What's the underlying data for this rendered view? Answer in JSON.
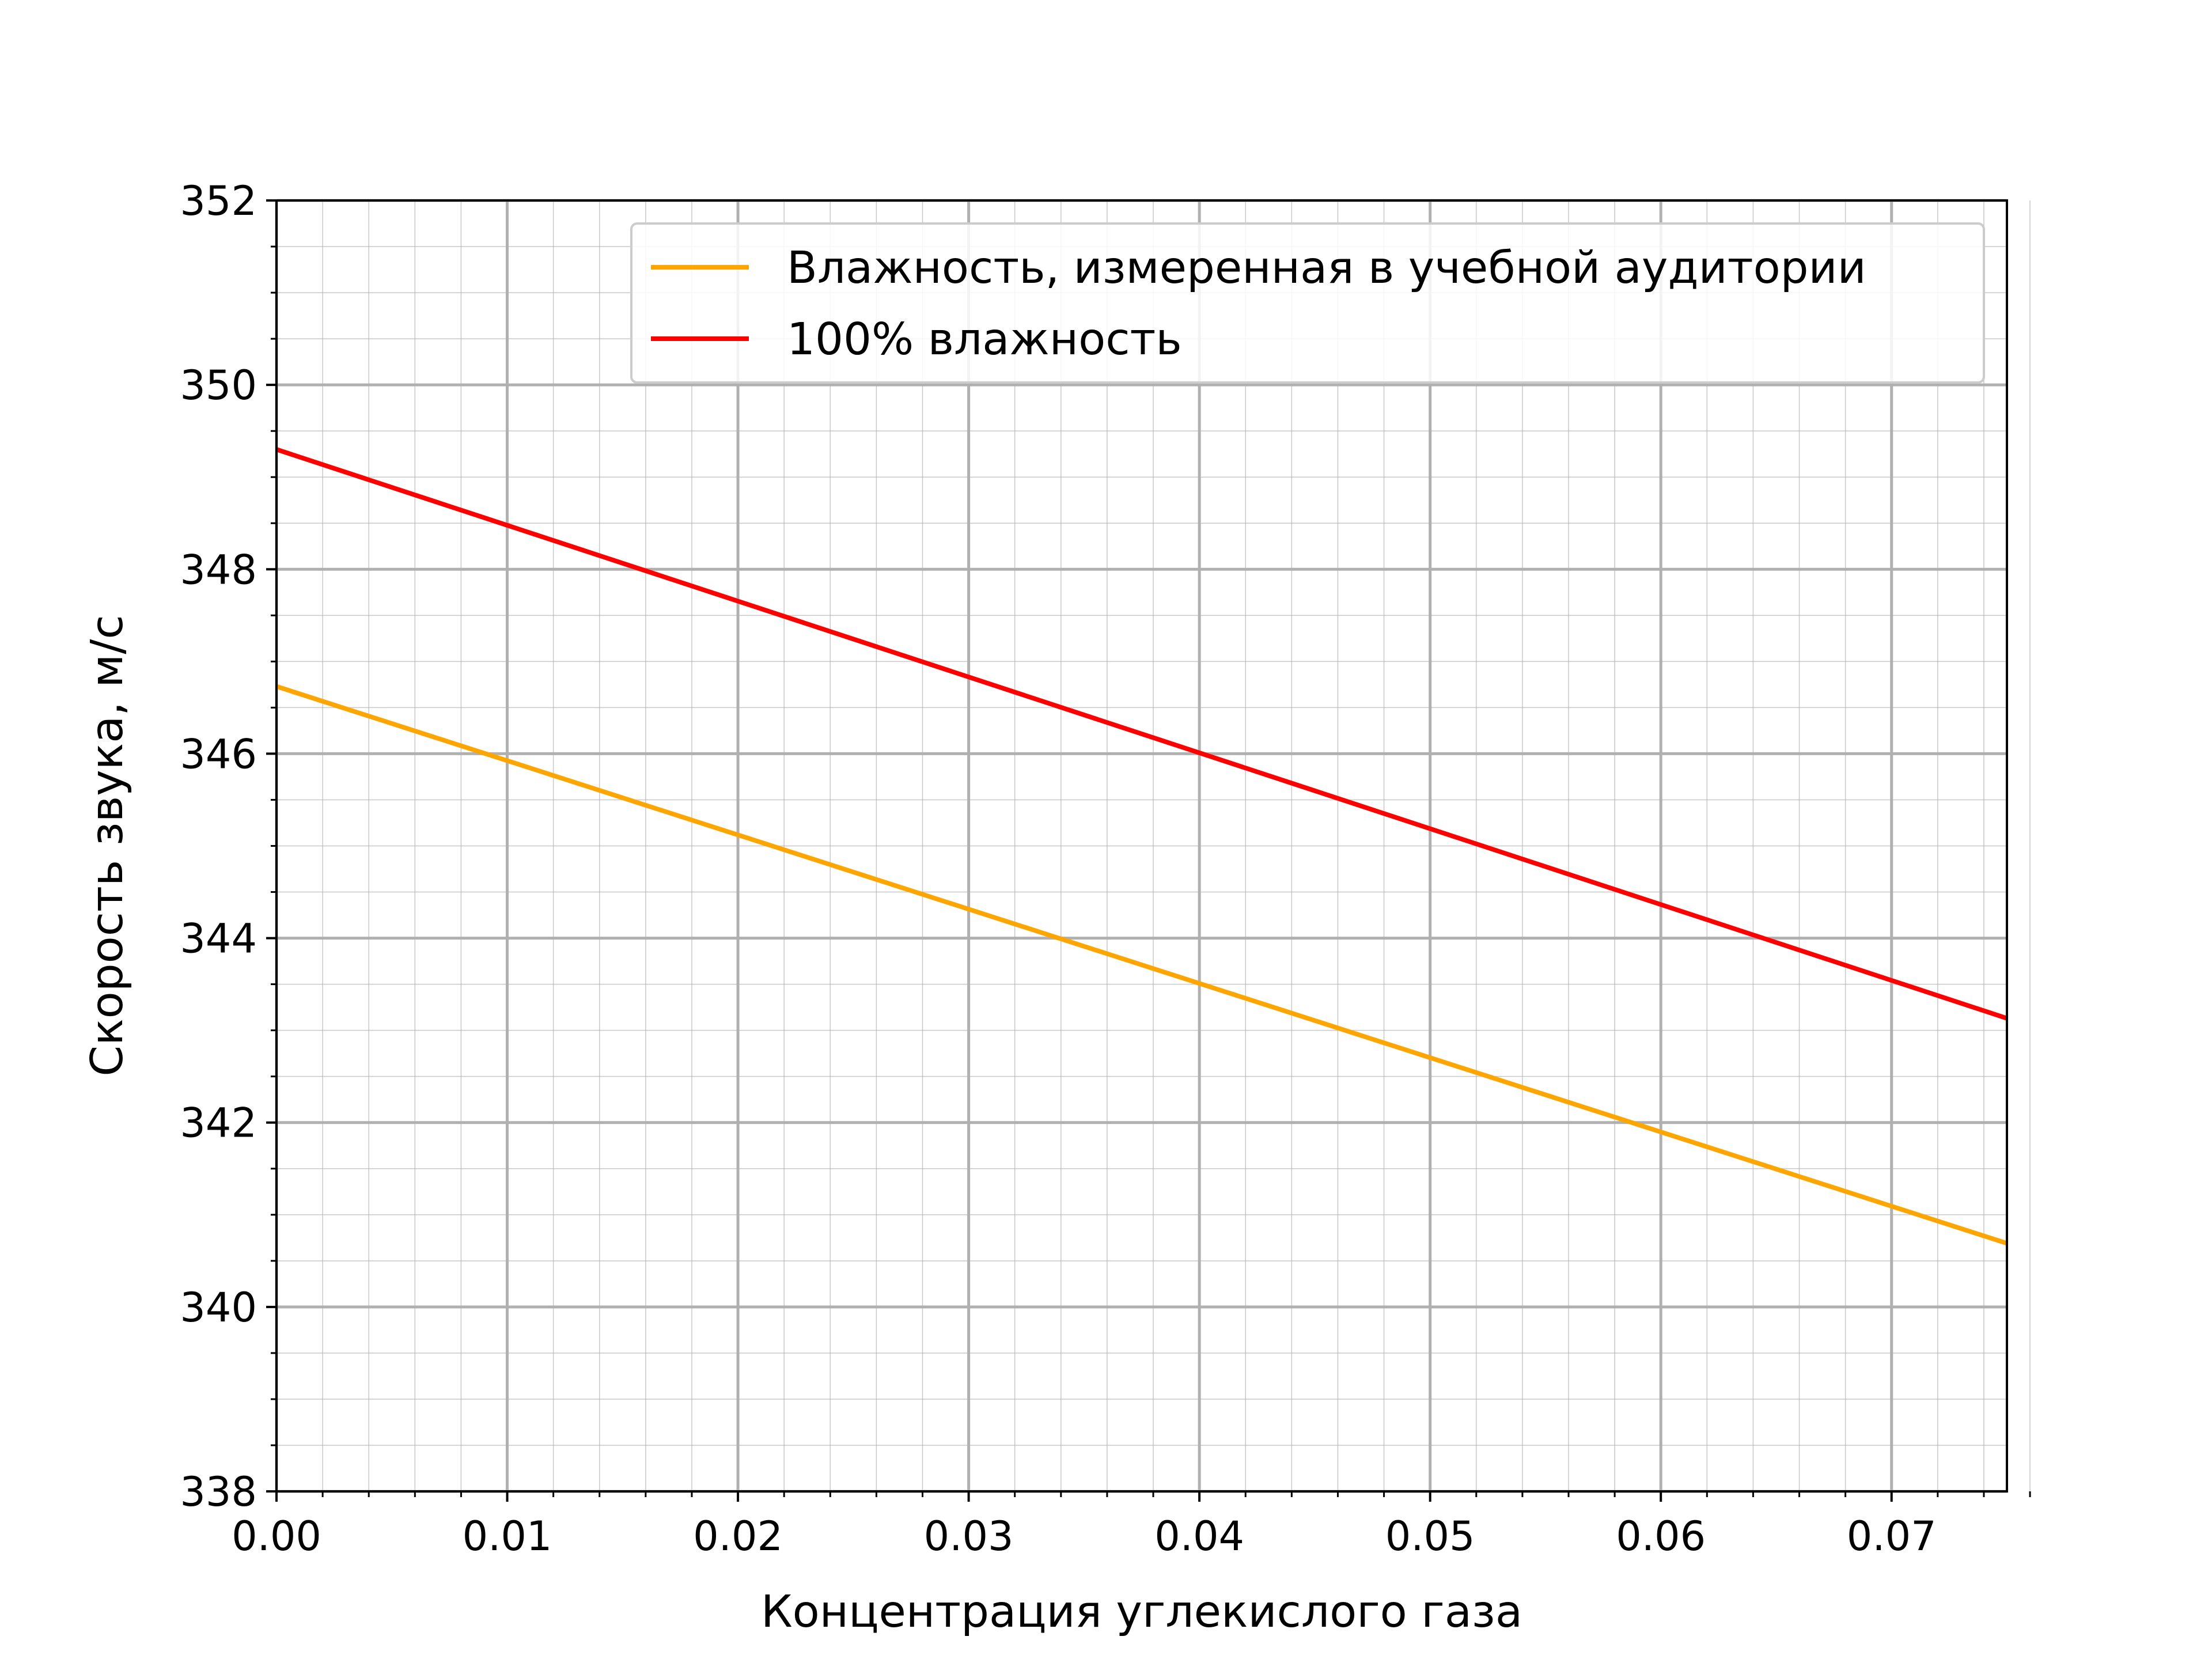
{
  "chart_data": {
    "type": "line",
    "title": "",
    "xlabel": "Концентрация углекислого газа",
    "ylabel": "Скорость звука, м/с",
    "xlim": [
      0.0,
      0.075
    ],
    "ylim": [
      338,
      352
    ],
    "x_ticks": [
      0.0,
      0.01,
      0.02,
      0.03,
      0.04,
      0.05,
      0.06,
      0.07
    ],
    "x_tick_labels": [
      "0.00",
      "0.01",
      "0.02",
      "0.03",
      "0.04",
      "0.05",
      "0.06",
      "0.07"
    ],
    "y_ticks": [
      338,
      340,
      342,
      344,
      346,
      348,
      350,
      352
    ],
    "y_tick_labels": [
      "338",
      "340",
      "342",
      "344",
      "346",
      "348",
      "350",
      "352"
    ],
    "x_minor_step": 0.002,
    "y_minor_step": 0.5,
    "grid": "major and minor",
    "legend_position": "top-right",
    "series": [
      {
        "name": "Влажность, измеренная в учебной аудитории",
        "color": "#FFA500",
        "x": [
          0.0,
          0.075
        ],
        "y": [
          346.73,
          340.69
        ]
      },
      {
        "name": "100% влажность",
        "color": "#FF0000",
        "x": [
          0.0,
          0.075
        ],
        "y": [
          349.3,
          343.13
        ]
      }
    ]
  }
}
